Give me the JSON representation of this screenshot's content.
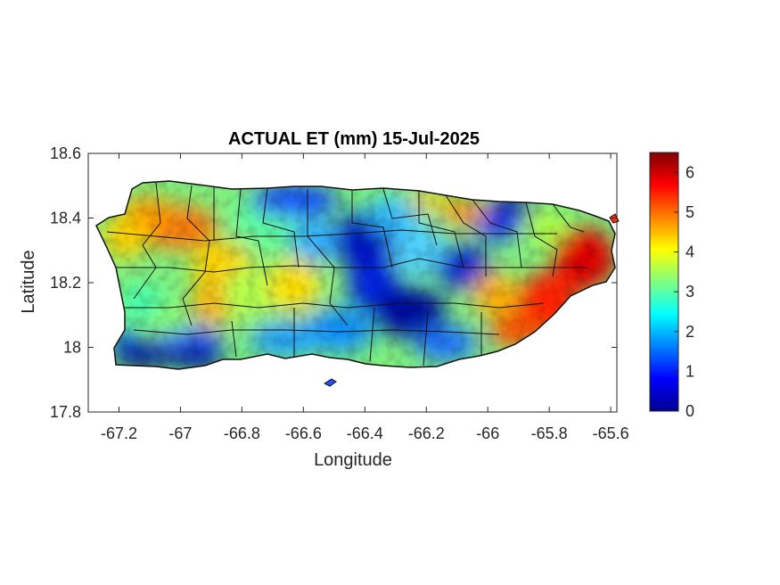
{
  "chart_data": {
    "type": "heatmap",
    "title": "ACTUAL ET (mm) 15-Jul-2025",
    "xlabel": "Longitude",
    "ylabel": "Latitude",
    "xlim": [
      -67.3,
      -65.58
    ],
    "ylim": [
      17.8,
      18.6
    ],
    "x_ticks": [
      "-67.2",
      "-67",
      "-66.8",
      "-66.6",
      "-66.4",
      "-66.2",
      "-66",
      "-65.8",
      "-65.6"
    ],
    "x_tick_values": [
      -67.2,
      -67.0,
      -66.8,
      -66.6,
      -66.4,
      -66.2,
      -66.0,
      -65.8,
      -65.6
    ],
    "y_ticks": [
      "17.8",
      "18",
      "18.2",
      "18.4",
      "18.6"
    ],
    "y_tick_values": [
      17.8,
      18.0,
      18.2,
      18.4,
      18.6
    ],
    "colorbar": {
      "colormap": "jet",
      "range": [
        0,
        6.5
      ],
      "ticks": [
        "0",
        "1",
        "2",
        "3",
        "4",
        "5",
        "6"
      ],
      "tick_values": [
        0,
        1,
        2,
        3,
        4,
        5,
        6
      ]
    },
    "grid": false,
    "regional_values_mm": {
      "northwest": 4.5,
      "west": 3.6,
      "southwest_coast": 0.3,
      "north_central": 1.3,
      "central_mountains": 1.0,
      "south_central": 1.5,
      "northeast_interior": 1.5,
      "east_coast": 6.0,
      "southeast": 5.3
    }
  }
}
